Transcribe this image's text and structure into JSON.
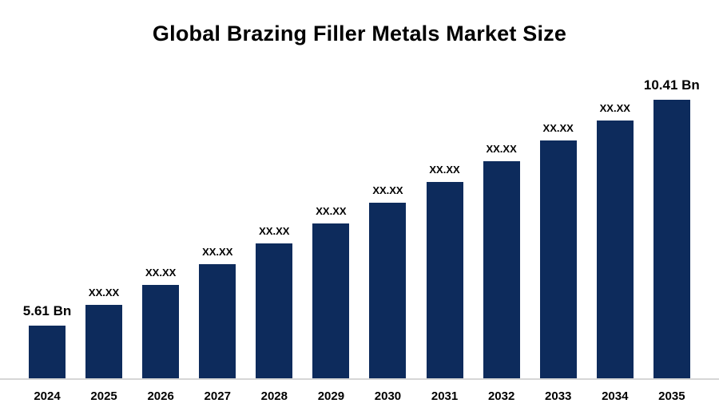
{
  "chart": {
    "title": "Global Brazing Filler Metals Market Size",
    "bar_color": "#0d2b5c",
    "baseline_color": "#d6d6d6",
    "background_color": "#ffffff",
    "text_color": "#000000"
  },
  "chart_data": {
    "type": "bar",
    "title": "Global Brazing Filler Metals Market Size",
    "categories": [
      "2024",
      "2025",
      "2026",
      "2027",
      "2028",
      "2029",
      "2030",
      "2031",
      "2032",
      "2033",
      "2034",
      "2035"
    ],
    "values": [
      5.61,
      6.05,
      6.48,
      6.92,
      7.36,
      7.79,
      8.23,
      8.66,
      9.1,
      9.54,
      9.97,
      10.41
    ],
    "bar_labels": [
      "5.61 Bn",
      "XX.XX",
      "XX.XX",
      "XX.XX",
      "XX.XX",
      "XX.XX",
      "XX.XX",
      "XX.XX",
      "XX.XX",
      "XX.XX",
      "XX.XX",
      "10.41 Bn"
    ],
    "unit": "Bn",
    "xlabel": "",
    "ylabel": "",
    "ylim": [
      4.5,
      11
    ],
    "grid": false,
    "legend": false,
    "notes": "Intermediate year values are masked as XX.XX in the source image; numeric values are estimates interpolated between the labeled endpoints 5.61 Bn (2024) and 10.41 Bn (2035)."
  }
}
